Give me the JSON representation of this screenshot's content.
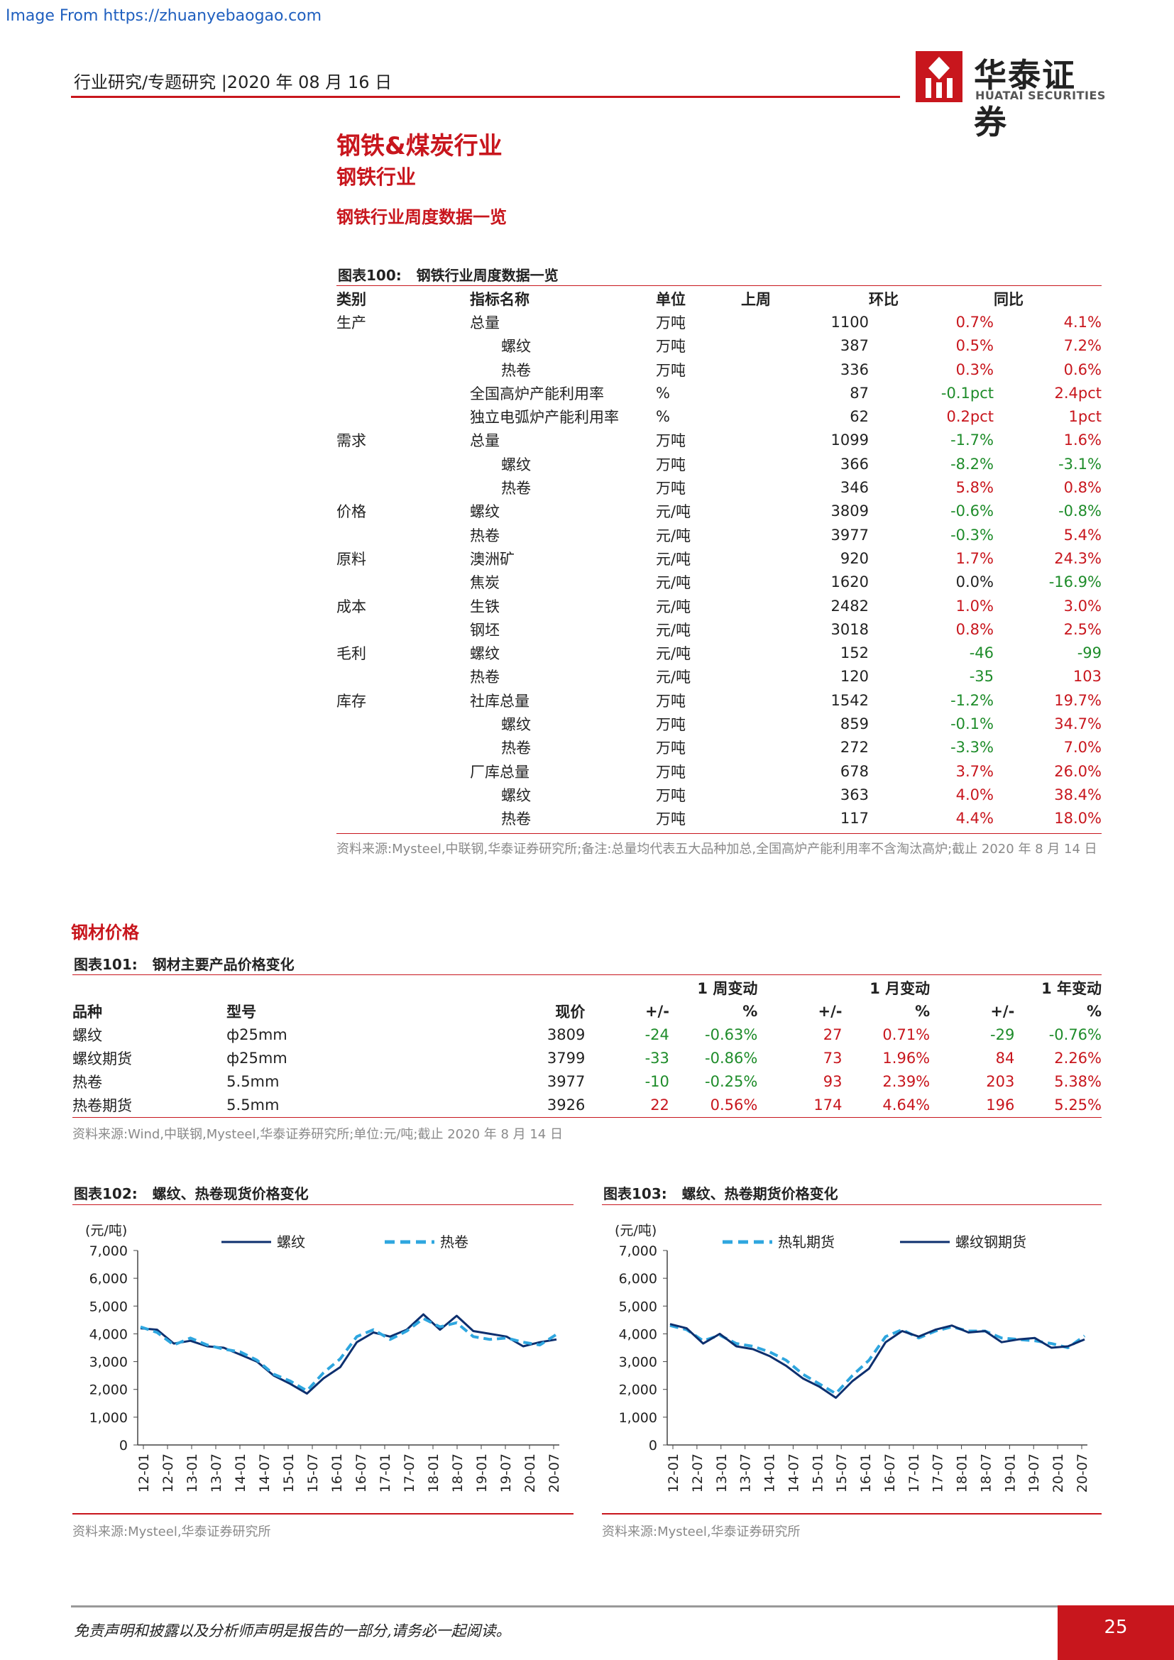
{
  "watermark": "Image From https://zhuanyebaogao.com",
  "header": {
    "text": "行业研究/专题研究 |2020 年 08 月 16 日"
  },
  "logo": {
    "cn": "华泰证券",
    "en": "HUATAI SECURITIES"
  },
  "section": {
    "h1": "钢铁&煤炭行业",
    "h2": "钢铁行业",
    "h3": "钢铁行业周度数据一览"
  },
  "fig100": {
    "label": "图表100:",
    "title": "钢铁行业周度数据一览",
    "headers": [
      "类别",
      "指标名称",
      "单位",
      "上周",
      "环比",
      "同比"
    ],
    "rows": [
      {
        "cat": "生产",
        "name": "总量",
        "indent": false,
        "unit": "万吨",
        "val": "1100",
        "wow": "0.7%",
        "wowc": "red",
        "yoy": "4.1%",
        "yoyc": "red"
      },
      {
        "cat": "",
        "name": "螺纹",
        "indent": true,
        "unit": "万吨",
        "val": "387",
        "wow": "0.5%",
        "wowc": "red",
        "yoy": "7.2%",
        "yoyc": "red"
      },
      {
        "cat": "",
        "name": "热卷",
        "indent": true,
        "unit": "万吨",
        "val": "336",
        "wow": "0.3%",
        "wowc": "red",
        "yoy": "0.6%",
        "yoyc": "red"
      },
      {
        "cat": "",
        "name": "全国高炉产能利用率",
        "indent": false,
        "unit": "%",
        "val": "87",
        "wow": "-0.1pct",
        "wowc": "green",
        "yoy": "2.4pct",
        "yoyc": "red"
      },
      {
        "cat": "",
        "name": "独立电弧炉产能利用率",
        "indent": false,
        "unit": "%",
        "val": "62",
        "wow": "0.2pct",
        "wowc": "red",
        "yoy": "1pct",
        "yoyc": "red"
      },
      {
        "cat": "需求",
        "name": "总量",
        "indent": false,
        "unit": "万吨",
        "val": "1099",
        "wow": "-1.7%",
        "wowc": "green",
        "yoy": "1.6%",
        "yoyc": "red"
      },
      {
        "cat": "",
        "name": "螺纹",
        "indent": true,
        "unit": "万吨",
        "val": "366",
        "wow": "-8.2%",
        "wowc": "green",
        "yoy": "-3.1%",
        "yoyc": "green"
      },
      {
        "cat": "",
        "name": "热卷",
        "indent": true,
        "unit": "万吨",
        "val": "346",
        "wow": "5.8%",
        "wowc": "red",
        "yoy": "0.8%",
        "yoyc": "red"
      },
      {
        "cat": "价格",
        "name": "螺纹",
        "indent": false,
        "unit": "元/吨",
        "val": "3809",
        "wow": "-0.6%",
        "wowc": "green",
        "yoy": "-0.8%",
        "yoyc": "green"
      },
      {
        "cat": "",
        "name": "热卷",
        "indent": false,
        "unit": "元/吨",
        "val": "3977",
        "wow": "-0.3%",
        "wowc": "green",
        "yoy": "5.4%",
        "yoyc": "red"
      },
      {
        "cat": "原料",
        "name": "澳洲矿",
        "indent": false,
        "unit": "元/吨",
        "val": "920",
        "wow": "1.7%",
        "wowc": "red",
        "yoy": "24.3%",
        "yoyc": "red"
      },
      {
        "cat": "",
        "name": "焦炭",
        "indent": false,
        "unit": "元/吨",
        "val": "1620",
        "wow": "0.0%",
        "wowc": "black",
        "yoy": "-16.9%",
        "yoyc": "green"
      },
      {
        "cat": "成本",
        "name": "生铁",
        "indent": false,
        "unit": "元/吨",
        "val": "2482",
        "wow": "1.0%",
        "wowc": "red",
        "yoy": "3.0%",
        "yoyc": "red"
      },
      {
        "cat": "",
        "name": "钢坯",
        "indent": false,
        "unit": "元/吨",
        "val": "3018",
        "wow": "0.8%",
        "wowc": "red",
        "yoy": "2.5%",
        "yoyc": "red"
      },
      {
        "cat": "毛利",
        "name": "螺纹",
        "indent": false,
        "unit": "元/吨",
        "val": "152",
        "wow": "-46",
        "wowc": "green",
        "yoy": "-99",
        "yoyc": "green"
      },
      {
        "cat": "",
        "name": "热卷",
        "indent": false,
        "unit": "元/吨",
        "val": "120",
        "wow": "-35",
        "wowc": "green",
        "yoy": "103",
        "yoyc": "red"
      },
      {
        "cat": "库存",
        "name": "社库总量",
        "indent": false,
        "unit": "万吨",
        "val": "1542",
        "wow": "-1.2%",
        "wowc": "green",
        "yoy": "19.7%",
        "yoyc": "red"
      },
      {
        "cat": "",
        "name": "螺纹",
        "indent": true,
        "unit": "万吨",
        "val": "859",
        "wow": "-0.1%",
        "wowc": "green",
        "yoy": "34.7%",
        "yoyc": "red"
      },
      {
        "cat": "",
        "name": "热卷",
        "indent": true,
        "unit": "万吨",
        "val": "272",
        "wow": "-3.3%",
        "wowc": "green",
        "yoy": "7.0%",
        "yoyc": "red"
      },
      {
        "cat": "",
        "name": "厂库总量",
        "indent": false,
        "unit": "万吨",
        "val": "678",
        "wow": "3.7%",
        "wowc": "red",
        "yoy": "26.0%",
        "yoyc": "red"
      },
      {
        "cat": "",
        "name": "螺纹",
        "indent": true,
        "unit": "万吨",
        "val": "363",
        "wow": "4.0%",
        "wowc": "red",
        "yoy": "38.4%",
        "yoyc": "red"
      },
      {
        "cat": "",
        "name": "热卷",
        "indent": true,
        "unit": "万吨",
        "val": "117",
        "wow": "4.4%",
        "wowc": "red",
        "yoy": "18.0%",
        "yoyc": "red"
      }
    ],
    "note": "资料来源:Mysteel,中联钢,华泰证券研究所;备注:总量均代表五大品种加总,全国高炉产能利用率不含淘汰高炉;截止 2020 年 8 月 14 日"
  },
  "steel_price": {
    "heading": "钢材价格",
    "label": "图表101:",
    "title": "钢材主要产品价格变化",
    "group_headers": [
      "1 周变动",
      "1 月变动",
      "1 年变动"
    ],
    "headers": [
      "品种",
      "型号",
      "现价",
      "+/-",
      "%",
      "+/-",
      "%",
      "+/-",
      "%"
    ],
    "rows": [
      {
        "name": "螺纹",
        "spec": "ф25mm",
        "price": "3809",
        "w": "-24",
        "wp": "-0.63%",
        "wc": "green",
        "m": "27",
        "mp": "0.71%",
        "mc": "red",
        "y": "-29",
        "yp": "-0.76%",
        "yc": "green"
      },
      {
        "name": "螺纹期货",
        "spec": "ф25mm",
        "price": "3799",
        "w": "-33",
        "wp": "-0.86%",
        "wc": "green",
        "m": "73",
        "mp": "1.96%",
        "mc": "red",
        "y": "84",
        "yp": "2.26%",
        "yc": "red"
      },
      {
        "name": "热卷",
        "spec": "5.5mm",
        "price": "3977",
        "w": "-10",
        "wp": "-0.25%",
        "wc": "green",
        "m": "93",
        "mp": "2.39%",
        "mc": "red",
        "y": "203",
        "yp": "5.38%",
        "yc": "red"
      },
      {
        "name": "热卷期货",
        "spec": "5.5mm",
        "price": "3926",
        "w": "22",
        "wp": "0.56%",
        "wc": "red",
        "m": "174",
        "mp": "4.64%",
        "mc": "red",
        "y": "196",
        "yp": "5.25%",
        "yc": "red"
      }
    ],
    "note": "资料来源:Wind,中联钢,Mysteel,华泰证券研究所;单位:元/吨;截止 2020 年 8 月 14 日"
  },
  "fig102": {
    "label": "图表102:",
    "title": "螺纹、热卷现货价格变化",
    "note": "资料来源:Mysteel,华泰证券研究所"
  },
  "fig103": {
    "label": "图表103:",
    "title": "螺纹、热卷期货价格变化",
    "note": "资料来源:Mysteel,华泰证券研究所"
  },
  "chart_data": [
    {
      "type": "line",
      "ylabel": "(元/吨)",
      "ylim": [
        0,
        7000
      ],
      "yticks": [
        "7,000",
        "6,000",
        "5,000",
        "4,000",
        "3,000",
        "2,000",
        "1,000",
        "0"
      ],
      "xticks": [
        "12-01",
        "12-07",
        "13-01",
        "13-07",
        "14-01",
        "14-07",
        "15-01",
        "15-07",
        "16-01",
        "16-07",
        "17-01",
        "17-07",
        "18-01",
        "18-07",
        "19-01",
        "19-07",
        "20-01",
        "20-07"
      ],
      "legend_position": "top",
      "series": [
        {
          "name": "螺纹",
          "style": "solid",
          "color": "#0d2f6e",
          "values": [
            4200,
            4150,
            3650,
            3750,
            3550,
            3500,
            3250,
            3000,
            2500,
            2200,
            1850,
            2400,
            2800,
            3700,
            4050,
            3900,
            4150,
            4700,
            4150,
            4650,
            4100,
            4000,
            3900,
            3550,
            3700,
            3800
          ]
        },
        {
          "name": "热卷",
          "style": "dashed",
          "color": "#2ea6df",
          "values": [
            4250,
            4050,
            3600,
            3850,
            3600,
            3450,
            3350,
            3050,
            2550,
            2300,
            1950,
            2600,
            3100,
            3900,
            4150,
            3800,
            4100,
            4550,
            4250,
            4400,
            3900,
            3800,
            3850,
            3700,
            3600,
            3977
          ]
        }
      ]
    },
    {
      "type": "line",
      "ylabel": "(元/吨)",
      "ylim": [
        0,
        7000
      ],
      "yticks": [
        "7,000",
        "6,000",
        "5,000",
        "4,000",
        "3,000",
        "2,000",
        "1,000",
        "0"
      ],
      "xticks": [
        "12-01",
        "12-07",
        "13-01",
        "13-07",
        "14-01",
        "14-07",
        "15-01",
        "15-07",
        "16-01",
        "16-07",
        "17-01",
        "17-07",
        "18-01",
        "18-07",
        "19-01",
        "19-07",
        "20-01",
        "20-07"
      ],
      "legend_position": "top",
      "series": [
        {
          "name": "热轧期货",
          "style": "dashed",
          "color": "#2ea6df",
          "values": [
            4300,
            4150,
            3750,
            3950,
            3650,
            3550,
            3350,
            3050,
            2550,
            2200,
            1850,
            2500,
            3050,
            3900,
            4150,
            3850,
            4100,
            4250,
            4100,
            4100,
            3850,
            3800,
            3750,
            3650,
            3500,
            3926
          ]
        },
        {
          "name": "螺纹钢期货",
          "style": "solid",
          "color": "#0d2f6e",
          "values": [
            4350,
            4200,
            3650,
            4000,
            3550,
            3450,
            3200,
            2850,
            2400,
            2100,
            1700,
            2300,
            2750,
            3700,
            4100,
            3900,
            4150,
            4300,
            4050,
            4100,
            3700,
            3800,
            3850,
            3500,
            3550,
            3799
          ]
        }
      ]
    }
  ],
  "footer": {
    "text": "免责声明和披露以及分析师声明是报告的一部分,请务必一起阅读。",
    "page": "25"
  },
  "colors": {
    "accent": "#c8161d",
    "positive": "#c8161d",
    "negative": "#1e8c2a"
  }
}
